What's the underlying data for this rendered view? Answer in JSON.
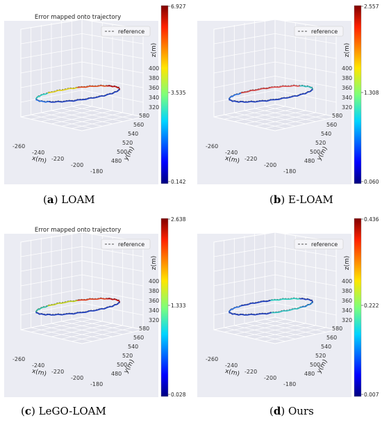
{
  "chart_data": [
    {
      "type": "line",
      "panel_label": "a",
      "caption": "LOAM",
      "title": "Error mapped onto trajectory",
      "legend": [
        "reference"
      ],
      "xlabel": "x(m)",
      "ylabel": "y(m)",
      "zlabel": "z(m)",
      "x_ticks": [
        "-260",
        "-240",
        "-220",
        "-200",
        "-180"
      ],
      "y_ticks": [
        "480",
        "500",
        "520",
        "540",
        "560",
        "580"
      ],
      "z_ticks": [
        "320",
        "340",
        "360",
        "380",
        "400"
      ],
      "colorbar": {
        "min": "0.142",
        "mid": "3.535",
        "max": "6.927"
      },
      "colors": [
        "#1f3fbf",
        "#1f3fbf",
        "#1f3fbf",
        "#2a6fe0",
        "#2ad0c0",
        "#e0d020",
        "#e05020",
        "#c01010"
      ]
    },
    {
      "type": "line",
      "panel_label": "b",
      "caption": "E-LOAM",
      "title": "",
      "legend": [
        "reference"
      ],
      "xlabel": "x(m)",
      "ylabel": "y(m)",
      "zlabel": "z(m)",
      "x_ticks": [
        "-260",
        "-240",
        "-220",
        "-200",
        "-180"
      ],
      "y_ticks": [
        "480",
        "500",
        "520",
        "540",
        "560",
        "580"
      ],
      "z_ticks": [
        "320",
        "340",
        "360",
        "380",
        "400"
      ],
      "colorbar": {
        "min": "0.060",
        "mid": "1.308",
        "max": "2.557"
      },
      "colors": [
        "#1f3fbf",
        "#1f3fbf",
        "#1f3fbf",
        "#1f3fbf",
        "#2a6fe0",
        "#d04040",
        "#e05050",
        "#30c0c0"
      ]
    },
    {
      "type": "line",
      "panel_label": "c",
      "caption": "LeGO-LOAM",
      "title": "Error mapped onto trajectory",
      "legend": [
        "reference"
      ],
      "xlabel": "x(m)",
      "ylabel": "y(m)",
      "zlabel": "z(m)",
      "x_ticks": [
        "-260",
        "-240",
        "-220",
        "-200",
        "-180"
      ],
      "y_ticks": [
        "480",
        "500",
        "520",
        "540",
        "560",
        "580"
      ],
      "z_ticks": [
        "320",
        "340",
        "360",
        "380",
        "400"
      ],
      "colorbar": {
        "min": "0.028",
        "mid": "1.333",
        "max": "2.638"
      },
      "colors": [
        "#1f3fbf",
        "#1f3fbf",
        "#1f3fbf",
        "#1f3fbf",
        "#30c0a0",
        "#c0d020",
        "#e04020",
        "#c01010"
      ]
    },
    {
      "type": "line",
      "panel_label": "d",
      "caption": "Ours",
      "title": "",
      "legend": [
        "reference"
      ],
      "xlabel": "x(m)",
      "ylabel": "y(m)",
      "zlabel": "z(m)",
      "x_ticks": [
        "-260",
        "-240",
        "-220",
        "-200",
        "-180"
      ],
      "y_ticks": [
        "480",
        "500",
        "520",
        "540",
        "560",
        "580"
      ],
      "z_ticks": [
        "320",
        "340",
        "360",
        "380",
        "400"
      ],
      "colorbar": {
        "min": "0.007",
        "mid": "0.222",
        "max": "0.436"
      },
      "colors": [
        "#2080d0",
        "#30c0c0",
        "#1f3fbf",
        "#1f3fbf",
        "#2a6fe0",
        "#1f3fbf",
        "#2ad0c0",
        "#1f3fbf"
      ]
    }
  ]
}
